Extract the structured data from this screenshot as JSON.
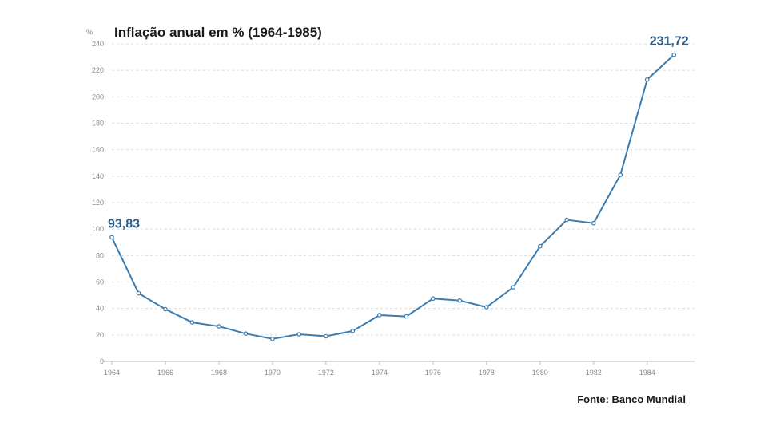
{
  "chart_data": {
    "type": "line",
    "title": "Inflação anual em % (1964-1985)",
    "ylabel": "%",
    "xlabel": "",
    "x": [
      1964,
      1965,
      1966,
      1967,
      1968,
      1969,
      1970,
      1971,
      1972,
      1973,
      1974,
      1975,
      1976,
      1977,
      1978,
      1979,
      1980,
      1981,
      1982,
      1983,
      1984,
      1985
    ],
    "series": [
      {
        "values": [
          93.83,
          51.5,
          39.5,
          29.5,
          26.5,
          21,
          17,
          20.5,
          19,
          23,
          35,
          34,
          47.5,
          46,
          41,
          56,
          87,
          107,
          104.5,
          141,
          213,
          231.72
        ]
      }
    ],
    "ylim": [
      0,
      240
    ],
    "yticks": [
      0,
      20,
      40,
      60,
      80,
      100,
      120,
      140,
      160,
      180,
      200,
      220,
      240
    ],
    "xticks": [
      1964,
      1966,
      1968,
      1970,
      1972,
      1974,
      1976,
      1978,
      1980,
      1982,
      1984
    ],
    "xlim": [
      1964,
      1985.8
    ],
    "grid": true,
    "annotations": [
      {
        "index": 0,
        "text": "93,83"
      },
      {
        "index": 21,
        "text": "231,72"
      }
    ],
    "source": "Fonte: Banco Mundial"
  },
  "colors": {
    "line": "#3a7bb0",
    "label": "#2d5f8c",
    "grid": "#dcdcdc",
    "axis": "#bdbdbd"
  }
}
